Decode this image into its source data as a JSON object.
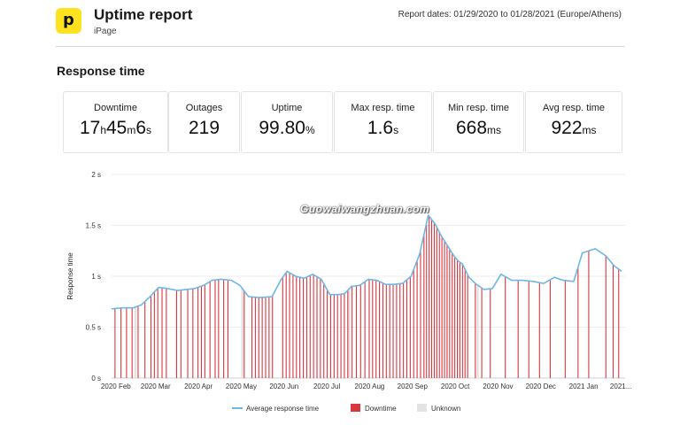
{
  "header": {
    "logo_letter": "p",
    "title": "Uptime report",
    "subtitle": "iPage",
    "dates": "Report dates: 01/29/2020 to 01/28/2021 (Europe/Athens)"
  },
  "section_title": "Response time",
  "stats": [
    {
      "label": "Downtime",
      "parts": [
        [
          "17",
          "big"
        ],
        [
          "h",
          "small"
        ],
        [
          "45",
          "big"
        ],
        [
          "m",
          "small"
        ],
        [
          "6",
          "big"
        ],
        [
          "s",
          "small"
        ]
      ]
    },
    {
      "label": "Outages",
      "parts": [
        [
          "219",
          "big"
        ]
      ]
    },
    {
      "label": "Uptime",
      "parts": [
        [
          "99.80",
          "big"
        ],
        [
          "%",
          "small"
        ]
      ]
    },
    {
      "label": "Max resp. time",
      "parts": [
        [
          "1.6",
          "big"
        ],
        [
          "s",
          "small"
        ]
      ]
    },
    {
      "label": "Min resp. time",
      "parts": [
        [
          "668",
          "big"
        ],
        [
          "ms",
          "small"
        ]
      ]
    },
    {
      "label": "Avg resp. time",
      "parts": [
        [
          "922",
          "big"
        ],
        [
          "ms",
          "small"
        ]
      ]
    }
  ],
  "watermark": "Guowaiwangzhuan.com",
  "colors": {
    "line": "#6fb7e3",
    "downtime": "#d9363e",
    "unknown": "#e3e3e3",
    "grid": "#ececec",
    "logo": "#ffe21f"
  },
  "chart_data": {
    "type": "line",
    "ylabel": "Response time",
    "ylim": [
      0,
      2
    ],
    "yticks": [
      "0 s",
      "0.5 s",
      "1 s",
      "1.5 s",
      "2 s"
    ],
    "yticks_values": [
      0,
      0.5,
      1,
      1.5,
      2
    ],
    "x_range": [
      0,
      12
    ],
    "xticks": [
      "2020 Feb",
      "2020 Mar",
      "2020 Apr",
      "2020 May",
      "2020 Jun",
      "2020 Jul",
      "2020 Aug",
      "2020 Sep",
      "2020 Oct",
      "2020 Nov",
      "2020 Dec",
      "2021 Jan",
      "2021..."
    ],
    "xticks_values": [
      0.1,
      1.03,
      2.03,
      3.03,
      4.03,
      5.03,
      6.03,
      7.03,
      8.03,
      9.03,
      10.03,
      11.03,
      11.9
    ],
    "grid": true,
    "legend_position": "bottom",
    "legend": [
      {
        "label": "Average response time",
        "kind": "line"
      },
      {
        "label": "Downtime",
        "kind": "box",
        "color": "#d9363e"
      },
      {
        "label": "Unknown",
        "kind": "box",
        "color": "#e3e3e3"
      }
    ],
    "series": [
      {
        "name": "Average response time",
        "x": [
          0,
          0.25,
          0.5,
          0.7,
          0.9,
          1.1,
          1.3,
          1.55,
          1.75,
          1.95,
          2.15,
          2.35,
          2.55,
          2.8,
          3.0,
          3.2,
          3.45,
          3.75,
          3.95,
          4.1,
          4.3,
          4.5,
          4.7,
          4.9,
          5.1,
          5.3,
          5.45,
          5.6,
          5.8,
          6.0,
          6.2,
          6.4,
          6.6,
          6.8,
          7.0,
          7.2,
          7.4,
          7.55,
          7.7,
          7.85,
          8.0,
          8.1,
          8.2,
          8.35,
          8.5,
          8.7,
          8.9,
          9.1,
          9.35,
          9.6,
          9.85,
          10.1,
          10.35,
          10.55,
          10.8,
          11.0,
          11.3,
          11.55,
          11.75,
          11.92
        ],
        "values": [
          0.68,
          0.69,
          0.69,
          0.72,
          0.8,
          0.89,
          0.88,
          0.86,
          0.87,
          0.88,
          0.91,
          0.96,
          0.97,
          0.96,
          0.91,
          0.8,
          0.79,
          0.8,
          0.96,
          1.05,
          1.0,
          0.98,
          1.02,
          0.97,
          0.82,
          0.82,
          0.83,
          0.9,
          0.91,
          0.97,
          0.96,
          0.92,
          0.92,
          0.93,
          1.0,
          1.22,
          1.6,
          1.52,
          1.4,
          1.3,
          1.2,
          1.15,
          1.12,
          0.99,
          0.93,
          0.87,
          0.88,
          1.02,
          0.96,
          0.96,
          0.95,
          0.93,
          0.99,
          0.96,
          0.95,
          1.23,
          1.27,
          1.2,
          1.1,
          1.05
        ]
      }
    ],
    "downtime_x": [
      0.08,
      0.22,
      0.35,
      0.48,
      0.62,
      0.78,
      0.92,
      1.0,
      1.08,
      1.18,
      1.28,
      1.52,
      1.62,
      1.78,
      1.9,
      2.02,
      2.1,
      2.18,
      2.3,
      2.42,
      2.5,
      2.62,
      2.72,
      3.1,
      3.28,
      3.36,
      3.44,
      3.52,
      3.6,
      3.68,
      3.76,
      4.0,
      4.08,
      4.16,
      4.24,
      4.32,
      4.4,
      4.48,
      4.56,
      4.64,
      4.72,
      4.8,
      4.88,
      4.96,
      5.04,
      5.12,
      5.2,
      5.28,
      5.36,
      5.44,
      5.52,
      5.62,
      5.72,
      5.82,
      5.92,
      6.02,
      6.1,
      6.18,
      6.26,
      6.34,
      6.42,
      6.5,
      6.58,
      6.66,
      6.74,
      6.82,
      6.9,
      6.98,
      7.06,
      7.14,
      7.22,
      7.3,
      7.36,
      7.42,
      7.48,
      7.54,
      7.6,
      7.66,
      7.72,
      7.78,
      7.84,
      7.9,
      7.96,
      8.02,
      8.08,
      8.14,
      8.2,
      8.26,
      8.32,
      8.5,
      8.65,
      8.85,
      9.2,
      9.5,
      9.75,
      10.0,
      10.25,
      10.6,
      10.9,
      11.15,
      11.55,
      11.72,
      11.85
    ],
    "unknown_x": [
      0.55,
      3.05,
      5.55,
      8.55
    ]
  }
}
